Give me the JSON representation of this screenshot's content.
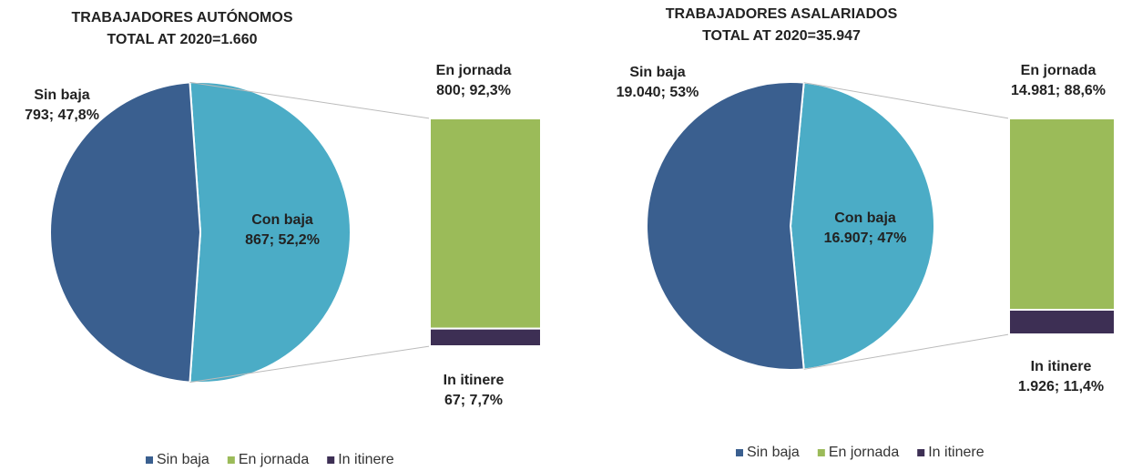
{
  "chart_data": [
    {
      "type": "bar-of-pie",
      "title": "TRABAJADORES AUTÓNOMOS",
      "subtitle": "TOTAL AT 2020=1.660",
      "categories": [
        "Sin baja",
        "Con baja"
      ],
      "values": [
        793,
        867
      ],
      "value_labels": [
        "793; 47,8%",
        "867; 52,2%"
      ],
      "colors": [
        "#3a5f8f",
        "#4bacc6"
      ],
      "bar": {
        "categories": [
          "En jornada",
          "In itinere"
        ],
        "values": [
          800,
          67
        ],
        "value_labels": [
          "800; 92,3%",
          "67; 7,7%"
        ],
        "colors": [
          "#9bbb59",
          "#3d2f54"
        ]
      },
      "legend": [
        {
          "name": "Sin baja",
          "color": "#3a5f8f"
        },
        {
          "name": "En jornada",
          "color": "#9bbb59"
        },
        {
          "name": "In itinere",
          "color": "#3d2f54"
        }
      ]
    },
    {
      "type": "bar-of-pie",
      "title": "TRABAJADORES ASALARIADOS",
      "subtitle": "TOTAL AT 2020=35.947",
      "categories": [
        "Sin baja",
        "Con baja"
      ],
      "values": [
        19040,
        16907
      ],
      "value_labels": [
        "19.040; 53%",
        "16.907; 47%"
      ],
      "colors": [
        "#3a5f8f",
        "#4bacc6"
      ],
      "bar": {
        "categories": [
          "En jornada",
          "In itinere"
        ],
        "values": [
          14981,
          1926
        ],
        "value_labels": [
          "14.981; 88,6%",
          "1.926; 11,4%"
        ],
        "colors": [
          "#9bbb59",
          "#3d2f54"
        ]
      },
      "legend": [
        {
          "name": "Sin baja",
          "color": "#3a5f8f"
        },
        {
          "name": "En jornada",
          "color": "#9bbb59"
        },
        {
          "name": "In itinere",
          "color": "#3d2f54"
        }
      ]
    }
  ]
}
